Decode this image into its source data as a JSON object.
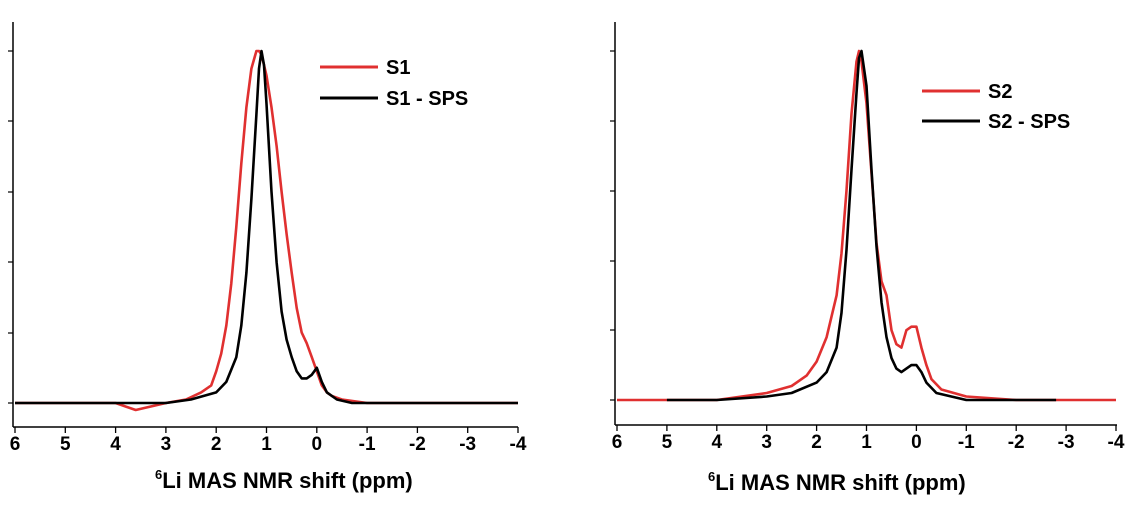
{
  "chart_data": [
    {
      "type": "line",
      "xlabel_sup": "6",
      "xlabel": "Li MAS NMR shift (ppm)",
      "xlim": [
        6,
        -4
      ],
      "ylim": [
        -0.05,
        1.05
      ],
      "x_ticks": [
        "6",
        "5",
        "4",
        "3",
        "2",
        "1",
        "0",
        "-1",
        "-2",
        "-3",
        "-4"
      ],
      "y_ticks_labeled": false,
      "grid": false,
      "legend_position": "top-right",
      "series": [
        {
          "name": "S1",
          "color": "#e03030",
          "x": [
            6.0,
            5.0,
            4.0,
            3.6,
            3.0,
            2.6,
            2.3,
            2.1,
            2.0,
            1.9,
            1.8,
            1.7,
            1.6,
            1.5,
            1.4,
            1.3,
            1.2,
            1.15,
            1.1,
            1.0,
            0.9,
            0.8,
            0.7,
            0.6,
            0.5,
            0.4,
            0.3,
            0.2,
            0.1,
            0.0,
            -0.1,
            -0.2,
            -0.3,
            -0.5,
            -1.0,
            -1.5,
            -2.0,
            -3.0,
            -4.0
          ],
          "y": [
            0.0,
            0.0,
            0.0,
            -0.02,
            0.0,
            0.01,
            0.03,
            0.05,
            0.09,
            0.14,
            0.22,
            0.34,
            0.5,
            0.68,
            0.84,
            0.95,
            1.0,
            1.0,
            0.99,
            0.93,
            0.84,
            0.73,
            0.6,
            0.48,
            0.37,
            0.27,
            0.2,
            0.17,
            0.13,
            0.09,
            0.05,
            0.03,
            0.02,
            0.01,
            0.0,
            0.0,
            0.0,
            0.0,
            0.0
          ]
        },
        {
          "name": "S1 - SPS",
          "color": "#000000",
          "x": [
            6.0,
            5.0,
            4.0,
            3.0,
            2.5,
            2.0,
            1.8,
            1.6,
            1.5,
            1.4,
            1.3,
            1.2,
            1.15,
            1.1,
            1.05,
            1.0,
            0.9,
            0.8,
            0.7,
            0.6,
            0.5,
            0.4,
            0.3,
            0.2,
            0.1,
            0.0,
            -0.1,
            -0.2,
            -0.4,
            -0.7,
            -1.0,
            -2.0,
            -3.0,
            -4.0
          ],
          "y": [
            0.0,
            0.0,
            0.0,
            0.0,
            0.01,
            0.03,
            0.06,
            0.13,
            0.22,
            0.37,
            0.58,
            0.82,
            0.95,
            1.0,
            0.96,
            0.85,
            0.6,
            0.4,
            0.26,
            0.18,
            0.13,
            0.09,
            0.07,
            0.07,
            0.08,
            0.1,
            0.06,
            0.03,
            0.01,
            0.0,
            0.0,
            0.0,
            0.0,
            0.0
          ]
        }
      ]
    },
    {
      "type": "line",
      "xlabel_sup": "6",
      "xlabel": "Li MAS NMR shift (ppm)",
      "xlim": [
        6,
        -4
      ],
      "ylim": [
        -0.05,
        1.05
      ],
      "x_ticks": [
        "6",
        "5",
        "4",
        "3",
        "2",
        "1",
        "0",
        "-1",
        "-2",
        "-3",
        "-4"
      ],
      "y_ticks_labeled": false,
      "grid": false,
      "legend_position": "top-right",
      "series": [
        {
          "name": "S2",
          "color": "#e03030",
          "x": [
            6.0,
            5.0,
            4.0,
            3.0,
            2.5,
            2.2,
            2.0,
            1.8,
            1.6,
            1.5,
            1.4,
            1.3,
            1.2,
            1.15,
            1.1,
            1.0,
            0.9,
            0.8,
            0.7,
            0.6,
            0.5,
            0.4,
            0.3,
            0.2,
            0.1,
            0.0,
            -0.1,
            -0.2,
            -0.3,
            -0.5,
            -1.0,
            -2.0,
            -3.0,
            -4.0
          ],
          "y": [
            0.0,
            0.0,
            0.0,
            0.02,
            0.04,
            0.07,
            0.11,
            0.18,
            0.3,
            0.42,
            0.6,
            0.82,
            0.97,
            1.0,
            0.97,
            0.85,
            0.65,
            0.45,
            0.34,
            0.3,
            0.2,
            0.16,
            0.15,
            0.2,
            0.21,
            0.21,
            0.15,
            0.1,
            0.06,
            0.03,
            0.01,
            0.0,
            0.0,
            0.0
          ]
        },
        {
          "name": "S2 - SPS",
          "color": "#000000",
          "x": [
            5.0,
            4.0,
            3.0,
            2.5,
            2.0,
            1.8,
            1.6,
            1.5,
            1.4,
            1.3,
            1.2,
            1.15,
            1.1,
            1.0,
            0.9,
            0.8,
            0.7,
            0.6,
            0.5,
            0.4,
            0.3,
            0.2,
            0.1,
            0.0,
            -0.1,
            -0.2,
            -0.4,
            -0.7,
            -1.0,
            -2.0,
            -2.8
          ],
          "y": [
            0.0,
            0.0,
            0.01,
            0.02,
            0.05,
            0.08,
            0.15,
            0.25,
            0.43,
            0.66,
            0.88,
            0.98,
            1.0,
            0.9,
            0.66,
            0.44,
            0.28,
            0.18,
            0.12,
            0.09,
            0.08,
            0.09,
            0.1,
            0.1,
            0.08,
            0.05,
            0.02,
            0.01,
            0.0,
            0.0,
            0.0
          ]
        }
      ]
    }
  ]
}
